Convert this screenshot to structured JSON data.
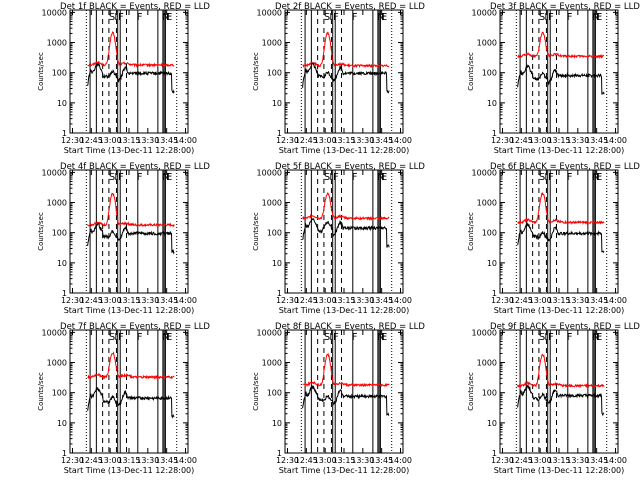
{
  "chart_data": {
    "type": "line",
    "ylabel": "Counts/sec",
    "xlabel": "Start Time (13-Dec-11 12:28:00)",
    "x_tick_labels": [
      "12:30",
      "12:45",
      "13:00",
      "13:15",
      "13:30",
      "13:45",
      "14:00"
    ],
    "x_range_minutes": [
      0,
      94
    ],
    "y_tick_labels": [
      "1",
      "10",
      "100",
      "1000",
      "10000"
    ],
    "ylim": [
      1,
      12000
    ],
    "y_scale": "log",
    "grid": false,
    "colors": {
      "events": "#000000",
      "lld": "#ff0000",
      "axes": "#000000"
    },
    "time_markers": {
      "solid": [
        "12:44",
        "12:49",
        "13:06",
        "13:08",
        "13:22",
        "13:38",
        "13:42",
        "13:43",
        "13:44"
      ],
      "dashed": [
        "12:54",
        "12:59",
        "13:05",
        "13:13"
      ],
      "dotted": [
        "12:41",
        "13:53"
      ]
    },
    "region_letters": [
      "S",
      "I",
      "F",
      "F",
      "N",
      "E"
    ],
    "panels": [
      {
        "title": "Det 1f BLACK = Events, RED = LLD",
        "lld_base": 180,
        "events_base": 100,
        "events_dip": 70,
        "peak": 1900
      },
      {
        "title": "Det 2f BLACK = Events, RED = LLD",
        "lld_base": 170,
        "events_base": 100,
        "events_dip": 65,
        "peak": 1900
      },
      {
        "title": "Det 3f BLACK = Events, RED = LLD",
        "lld_base": 350,
        "events_base": 85,
        "events_dip": 60,
        "peak": 1700
      },
      {
        "title": "Det 4f BLACK = Events, RED = LLD",
        "lld_base": 180,
        "events_base": 100,
        "events_dip": 70,
        "peak": 1800
      },
      {
        "title": "Det 5f BLACK = Events, RED = LLD",
        "lld_base": 300,
        "events_base": 150,
        "events_dip": 140,
        "peak": 1700
      },
      {
        "title": "Det 6f BLACK = Events, RED = LLD",
        "lld_base": 220,
        "events_base": 100,
        "events_dip": 65,
        "peak": 1800
      },
      {
        "title": "Det 7f BLACK = Events, RED = LLD",
        "lld_base": 330,
        "events_base": 70,
        "events_dip": 45,
        "peak": 1800
      },
      {
        "title": "Det 8f BLACK = Events, RED = LLD",
        "lld_base": 180,
        "events_base": 80,
        "events_dip": 50,
        "peak": 1700
      },
      {
        "title": "Det 9f BLACK = Events, RED = LLD",
        "lld_base": 170,
        "events_base": 85,
        "events_dip": 55,
        "peak": 1700
      }
    ]
  }
}
